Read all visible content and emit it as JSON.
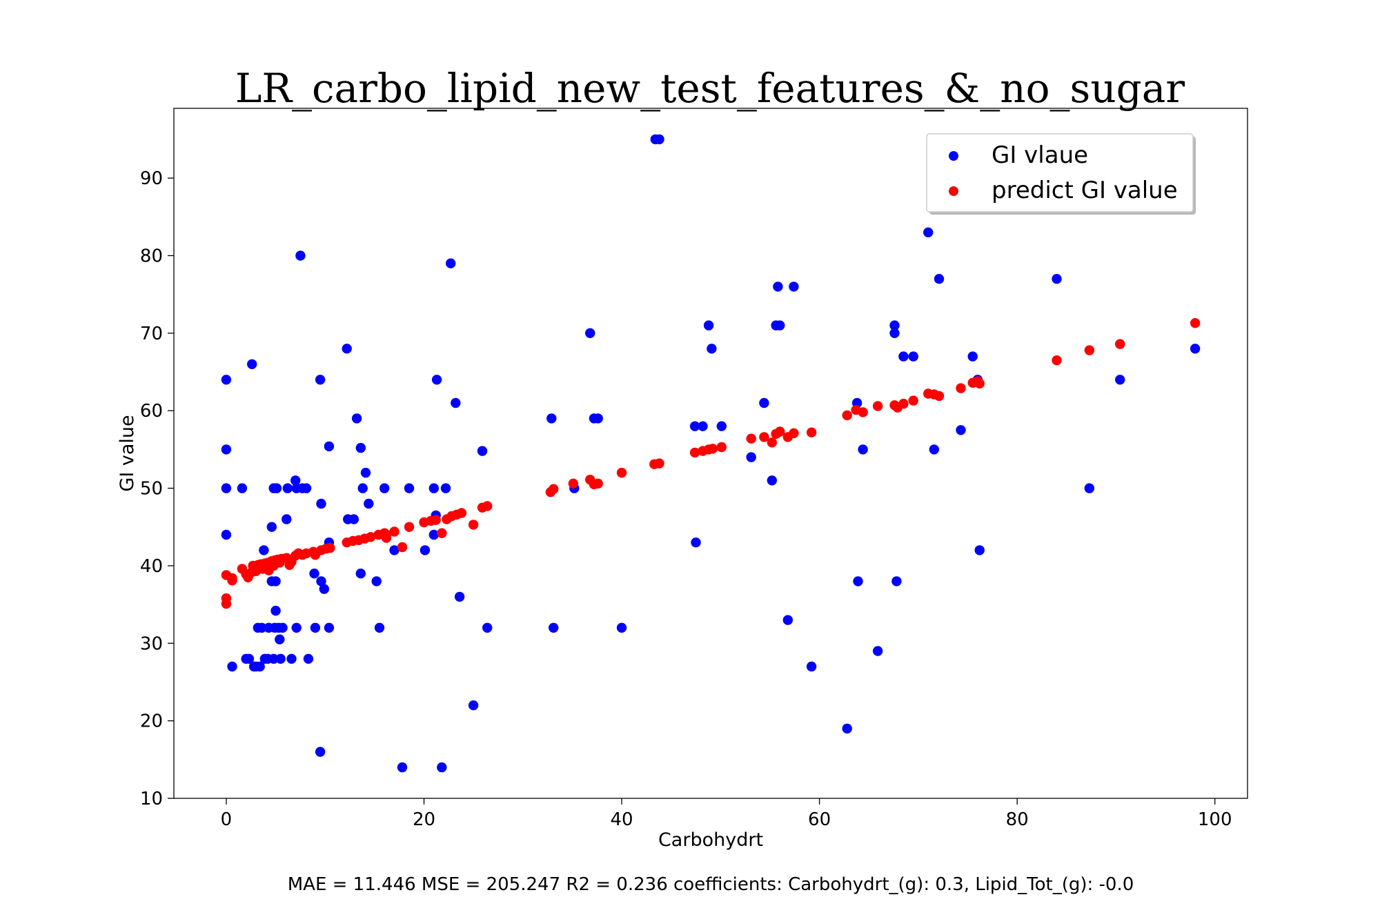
{
  "chart_data": {
    "type": "scatter",
    "title": "LR_carbo_lipid_new_test_features_&_no_sugar",
    "xlabel": "Carbohydrt",
    "ylabel": "GI value",
    "caption": "MAE = 11.446 MSE = 205.247 R2 = 0.236 coefficients: Carbohydrt_(g): 0.3, Lipid_Tot_(g): -0.0",
    "xlim": [
      -5.3,
      103.3
    ],
    "ylim": [
      10,
      99
    ],
    "xticks": [
      0,
      20,
      40,
      60,
      80,
      100
    ],
    "yticks": [
      10,
      20,
      30,
      40,
      50,
      60,
      70,
      80,
      90
    ],
    "grid": false,
    "legend": "top-right",
    "series": [
      {
        "name": "GI vlaue",
        "color": "#0000ff",
        "points": [
          [
            0,
            64
          ],
          [
            0,
            55
          ],
          [
            0,
            50
          ],
          [
            0,
            44
          ],
          [
            0.6,
            27
          ],
          [
            1.6,
            50
          ],
          [
            2,
            28
          ],
          [
            2.3,
            28
          ],
          [
            2.6,
            66
          ],
          [
            2.8,
            27
          ],
          [
            3,
            27
          ],
          [
            3.2,
            32
          ],
          [
            3.4,
            27
          ],
          [
            3.6,
            32
          ],
          [
            3.8,
            42
          ],
          [
            3.9,
            28
          ],
          [
            4.2,
            28
          ],
          [
            4.3,
            32
          ],
          [
            4.6,
            38
          ],
          [
            4.6,
            45
          ],
          [
            4.8,
            50
          ],
          [
            4.8,
            28
          ],
          [
            4.9,
            32
          ],
          [
            5,
            34.2
          ],
          [
            5,
            38
          ],
          [
            5.1,
            50
          ],
          [
            5.3,
            32
          ],
          [
            5.4,
            30.5
          ],
          [
            5.5,
            28
          ],
          [
            5.7,
            32
          ],
          [
            6.1,
            46
          ],
          [
            6.2,
            50
          ],
          [
            6.6,
            28
          ],
          [
            7,
            51
          ],
          [
            7.1,
            50
          ],
          [
            7.1,
            32
          ],
          [
            7.5,
            80
          ],
          [
            7.7,
            50
          ],
          [
            8.1,
            50
          ],
          [
            8.3,
            28
          ],
          [
            8.9,
            39
          ],
          [
            9,
            32
          ],
          [
            9.5,
            64
          ],
          [
            9.6,
            48
          ],
          [
            9.6,
            38
          ],
          [
            9.9,
            37
          ],
          [
            9.5,
            16
          ],
          [
            10.4,
            55.4
          ],
          [
            10.4,
            43
          ],
          [
            10.4,
            32
          ],
          [
            12.2,
            68
          ],
          [
            12.3,
            46
          ],
          [
            12.9,
            46
          ],
          [
            13.2,
            59
          ],
          [
            13.6,
            55.2
          ],
          [
            13.6,
            39
          ],
          [
            13.8,
            50
          ],
          [
            14.1,
            52
          ],
          [
            14.4,
            48
          ],
          [
            15.2,
            38
          ],
          [
            15.5,
            32
          ],
          [
            16,
            50
          ],
          [
            16.2,
            44
          ],
          [
            17,
            42
          ],
          [
            17.8,
            14
          ],
          [
            18.5,
            50
          ],
          [
            20.1,
            42
          ],
          [
            21,
            50
          ],
          [
            21,
            44
          ],
          [
            21.2,
            46.5
          ],
          [
            21.3,
            64
          ],
          [
            21.8,
            14
          ],
          [
            22.2,
            50
          ],
          [
            22.7,
            79
          ],
          [
            23.2,
            61
          ],
          [
            23.6,
            36
          ],
          [
            25,
            22
          ],
          [
            25.9,
            54.8
          ],
          [
            26.4,
            32
          ],
          [
            32.9,
            59
          ],
          [
            33.1,
            32
          ],
          [
            35.2,
            50
          ],
          [
            36.8,
            70
          ],
          [
            37.2,
            59
          ],
          [
            37.6,
            59
          ],
          [
            40,
            32
          ],
          [
            43.4,
            95
          ],
          [
            43.8,
            95
          ],
          [
            47.4,
            58
          ],
          [
            47.5,
            43
          ],
          [
            48.2,
            58
          ],
          [
            48.8,
            71
          ],
          [
            49.1,
            68
          ],
          [
            50.1,
            58
          ],
          [
            53.1,
            54
          ],
          [
            54.4,
            61
          ],
          [
            55.2,
            51
          ],
          [
            55.6,
            71
          ],
          [
            55.8,
            76
          ],
          [
            56,
            71
          ],
          [
            56.8,
            33
          ],
          [
            57.4,
            76
          ],
          [
            59.2,
            27
          ],
          [
            62.8,
            19
          ],
          [
            63.8,
            61
          ],
          [
            63.9,
            38
          ],
          [
            64.4,
            55
          ],
          [
            65.9,
            29
          ],
          [
            67.6,
            71
          ],
          [
            67.6,
            70
          ],
          [
            67.8,
            38
          ],
          [
            68.5,
            67
          ],
          [
            69.5,
            67
          ],
          [
            71,
            83
          ],
          [
            71.6,
            55
          ],
          [
            72.1,
            77
          ],
          [
            74.3,
            57.5
          ],
          [
            75.5,
            67
          ],
          [
            76,
            64
          ],
          [
            76.2,
            42
          ],
          [
            84,
            77
          ],
          [
            87.3,
            50
          ],
          [
            90.4,
            64
          ],
          [
            98,
            68
          ]
        ]
      },
      {
        "name": "predict GI value",
        "color": "#ff0000",
        "points": [
          [
            0,
            38.8
          ],
          [
            0,
            35.8
          ],
          [
            0,
            35.1
          ],
          [
            0.6,
            38.4
          ],
          [
            0.6,
            38.1
          ],
          [
            1.6,
            39.6
          ],
          [
            2,
            38.9
          ],
          [
            2.2,
            38.5
          ],
          [
            2.6,
            39.2
          ],
          [
            2.7,
            40
          ],
          [
            3,
            39.3
          ],
          [
            3.2,
            40.1
          ],
          [
            3.5,
            40.2
          ],
          [
            3.7,
            39.6
          ],
          [
            3.9,
            40.3
          ],
          [
            4.2,
            40.4
          ],
          [
            4.3,
            39.4
          ],
          [
            4.6,
            40.6
          ],
          [
            4.8,
            40
          ],
          [
            4.9,
            40.7
          ],
          [
            5.2,
            40.8
          ],
          [
            5.4,
            40.4
          ],
          [
            5.6,
            40.9
          ],
          [
            6.1,
            41
          ],
          [
            6.4,
            40.1
          ],
          [
            6.6,
            40.5
          ],
          [
            7,
            41.3
          ],
          [
            7.3,
            41.6
          ],
          [
            7.7,
            41.4
          ],
          [
            8.1,
            41.6
          ],
          [
            8.8,
            41.8
          ],
          [
            9,
            41.4
          ],
          [
            9.6,
            42
          ],
          [
            10.1,
            42.2
          ],
          [
            10.5,
            42.3
          ],
          [
            12.2,
            43
          ],
          [
            12.8,
            43.2
          ],
          [
            13.4,
            43.3
          ],
          [
            14,
            43.5
          ],
          [
            14.6,
            43.7
          ],
          [
            15.4,
            44
          ],
          [
            16,
            44.2
          ],
          [
            16.2,
            43.6
          ],
          [
            17,
            44.4
          ],
          [
            17.8,
            42.4
          ],
          [
            18.5,
            45
          ],
          [
            20,
            45.6
          ],
          [
            20.7,
            45.8
          ],
          [
            21.2,
            45.9
          ],
          [
            21.8,
            44.2
          ],
          [
            22.3,
            46
          ],
          [
            22.8,
            46.4
          ],
          [
            23.3,
            46.6
          ],
          [
            23.8,
            46.8
          ],
          [
            25,
            45.3
          ],
          [
            25.9,
            47.5
          ],
          [
            26.4,
            47.7
          ],
          [
            32.8,
            49.5
          ],
          [
            33.1,
            49.9
          ],
          [
            35.1,
            50.6
          ],
          [
            36.8,
            51.1
          ],
          [
            37.2,
            50.5
          ],
          [
            37.6,
            50.6
          ],
          [
            40,
            52
          ],
          [
            43.3,
            53.1
          ],
          [
            43.8,
            53.2
          ],
          [
            47.4,
            54.6
          ],
          [
            48.2,
            54.8
          ],
          [
            48.8,
            55
          ],
          [
            49.2,
            55.1
          ],
          [
            50.1,
            55.3
          ],
          [
            53.1,
            56.4
          ],
          [
            54.4,
            56.6
          ],
          [
            55.2,
            55.9
          ],
          [
            55.6,
            57
          ],
          [
            56,
            57.3
          ],
          [
            56.8,
            56.6
          ],
          [
            57.4,
            57.1
          ],
          [
            59.2,
            57.2
          ],
          [
            62.8,
            59.4
          ],
          [
            63.7,
            60.1
          ],
          [
            64.4,
            59.8
          ],
          [
            65.9,
            60.6
          ],
          [
            67.6,
            60.7
          ],
          [
            67.9,
            60.4
          ],
          [
            68.5,
            60.9
          ],
          [
            69.5,
            61.3
          ],
          [
            71,
            62.2
          ],
          [
            71.6,
            62.1
          ],
          [
            72.1,
            61.9
          ],
          [
            74.3,
            62.9
          ],
          [
            75.5,
            63.6
          ],
          [
            76,
            63.8
          ],
          [
            76.2,
            63.5
          ],
          [
            84,
            66.5
          ],
          [
            87.3,
            67.8
          ],
          [
            90.4,
            68.6
          ],
          [
            98,
            71.3
          ]
        ]
      }
    ]
  }
}
